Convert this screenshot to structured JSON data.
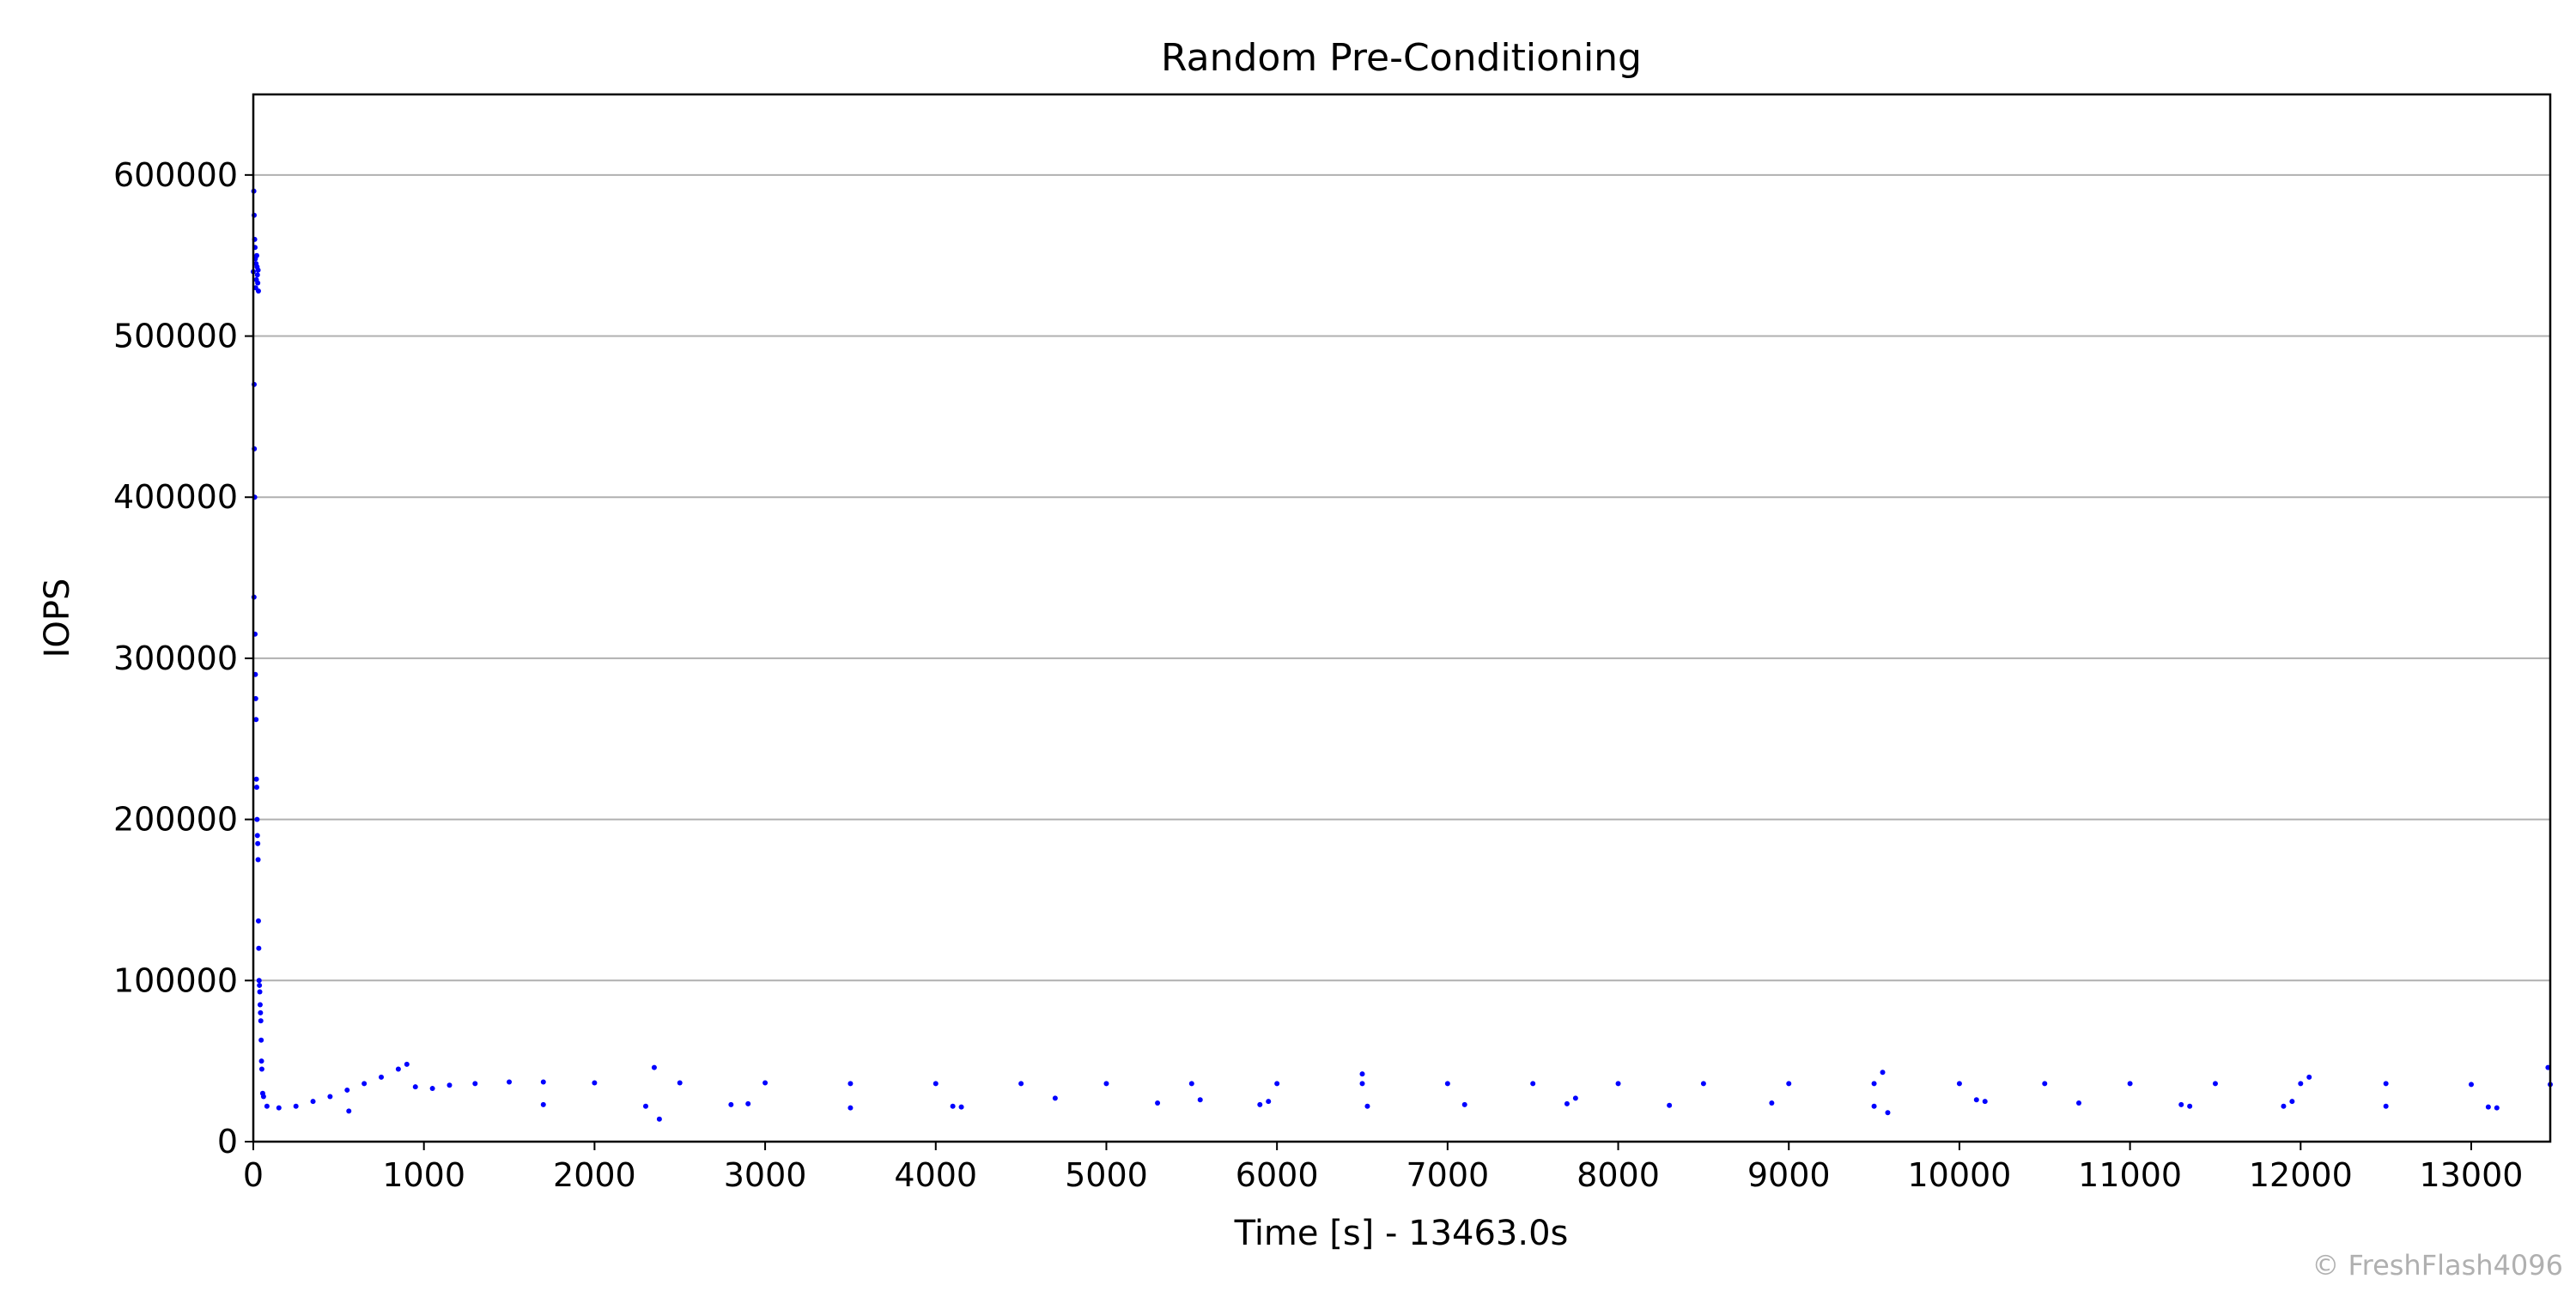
{
  "chart_data": {
    "type": "scatter",
    "title": "Random Pre-Conditioning",
    "xlabel": "Time [s] - 13463.0s",
    "ylabel": "IOPS",
    "xlim": [
      0,
      13463
    ],
    "ylim": [
      0,
      650000
    ],
    "xticks": [
      0,
      1000,
      2000,
      3000,
      4000,
      5000,
      6000,
      7000,
      8000,
      9000,
      10000,
      11000,
      12000,
      13000
    ],
    "yticks": [
      0,
      100000,
      200000,
      300000,
      400000,
      500000,
      600000
    ],
    "grid": {
      "axis": "y",
      "enabled": true
    },
    "marker_color": "#0000ff",
    "series": [
      {
        "points": [
          [
            0,
            540000
          ],
          [
            3,
            590000
          ],
          [
            5,
            575000
          ],
          [
            8,
            560000
          ],
          [
            10,
            555000
          ],
          [
            12,
            548000
          ],
          [
            14,
            530000
          ],
          [
            16,
            545000
          ],
          [
            18,
            535000
          ],
          [
            20,
            550000
          ],
          [
            22,
            543000
          ],
          [
            24,
            538000
          ],
          [
            26,
            533000
          ],
          [
            28,
            541000
          ],
          [
            30,
            528000
          ],
          [
            5,
            470000
          ],
          [
            8,
            400000
          ],
          [
            6,
            430000
          ],
          [
            4,
            338000
          ],
          [
            10,
            315000
          ],
          [
            12,
            290000
          ],
          [
            14,
            275000
          ],
          [
            16,
            262000
          ],
          [
            18,
            225000
          ],
          [
            20,
            220000
          ],
          [
            22,
            200000
          ],
          [
            24,
            190000
          ],
          [
            26,
            185000
          ],
          [
            28,
            175000
          ],
          [
            30,
            137000
          ],
          [
            32,
            120000
          ],
          [
            34,
            100000
          ],
          [
            36,
            97000
          ],
          [
            38,
            93000
          ],
          [
            40,
            85000
          ],
          [
            42,
            80000
          ],
          [
            44,
            75000
          ],
          [
            46,
            63000
          ],
          [
            48,
            50000
          ],
          [
            50,
            45000
          ],
          [
            55,
            30000
          ],
          [
            60,
            28000
          ],
          [
            80,
            22000
          ],
          [
            150,
            21000
          ],
          [
            250,
            22000
          ],
          [
            350,
            25000
          ],
          [
            450,
            28000
          ],
          [
            550,
            32000
          ],
          [
            650,
            36000
          ],
          [
            750,
            40000
          ],
          [
            850,
            45000
          ],
          [
            900,
            48000
          ],
          [
            950,
            34000
          ],
          [
            1050,
            33000
          ],
          [
            1150,
            35000
          ],
          [
            1300,
            36000
          ],
          [
            1500,
            37000
          ],
          [
            1700,
            37000
          ],
          [
            2000,
            36500
          ],
          [
            2500,
            36500
          ],
          [
            3000,
            36500
          ],
          [
            3500,
            36000
          ],
          [
            4000,
            36000
          ],
          [
            4500,
            36000
          ],
          [
            5000,
            36000
          ],
          [
            5500,
            36000
          ],
          [
            6000,
            36000
          ],
          [
            6500,
            36000
          ],
          [
            7000,
            36000
          ],
          [
            7500,
            36000
          ],
          [
            8000,
            36000
          ],
          [
            8500,
            36000
          ],
          [
            9000,
            36000
          ],
          [
            9500,
            36000
          ],
          [
            10000,
            36000
          ],
          [
            10500,
            36000
          ],
          [
            11000,
            36000
          ],
          [
            11500,
            36000
          ],
          [
            12000,
            36000
          ],
          [
            12500,
            36000
          ],
          [
            13000,
            35500
          ],
          [
            13463,
            35500
          ],
          [
            560,
            19000
          ],
          [
            1700,
            23000
          ],
          [
            2300,
            22000
          ],
          [
            2350,
            46000
          ],
          [
            2380,
            14000
          ],
          [
            2800,
            23000
          ],
          [
            2900,
            23500
          ],
          [
            3500,
            21000
          ],
          [
            4100,
            22000
          ],
          [
            4150,
            21500
          ],
          [
            4700,
            27000
          ],
          [
            5300,
            24000
          ],
          [
            5550,
            26000
          ],
          [
            5900,
            23000
          ],
          [
            5950,
            25000
          ],
          [
            6500,
            42000
          ],
          [
            6530,
            22000
          ],
          [
            7100,
            23000
          ],
          [
            7700,
            23500
          ],
          [
            7750,
            27000
          ],
          [
            8300,
            22500
          ],
          [
            8900,
            24000
          ],
          [
            9500,
            22000
          ],
          [
            9550,
            43000
          ],
          [
            9580,
            18000
          ],
          [
            10100,
            26000
          ],
          [
            10150,
            25000
          ],
          [
            10700,
            24000
          ],
          [
            11300,
            23000
          ],
          [
            11350,
            22000
          ],
          [
            11900,
            22000
          ],
          [
            11950,
            25000
          ],
          [
            12050,
            40000
          ],
          [
            12500,
            22000
          ],
          [
            13100,
            21500
          ],
          [
            13150,
            21000
          ],
          [
            13450,
            46000
          ]
        ]
      }
    ]
  },
  "watermark": "© FreshFlash4096"
}
